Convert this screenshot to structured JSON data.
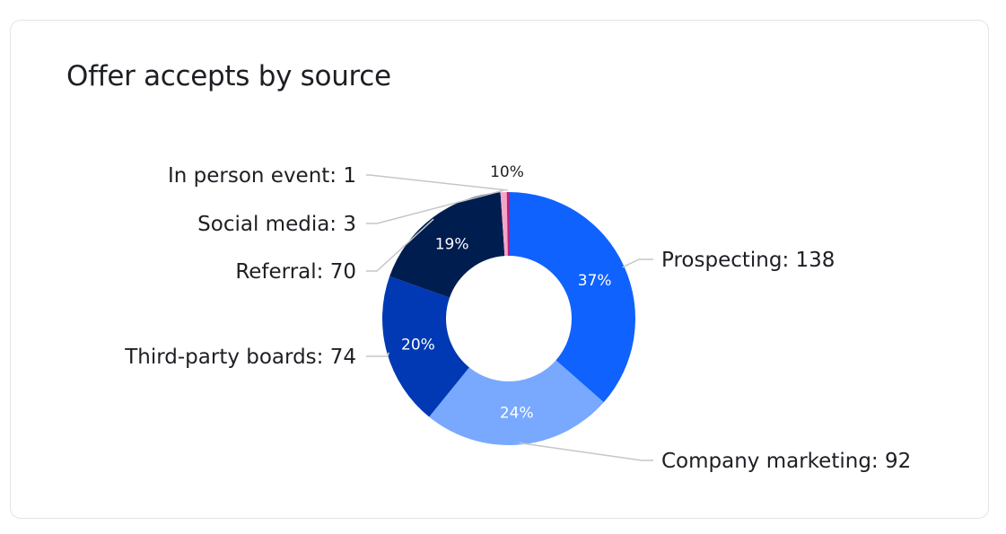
{
  "chart_data": {
    "type": "pie",
    "variant": "donut",
    "title": "Offer accepts by source",
    "slices": [
      {
        "label": "Prospecting",
        "value": 138,
        "percent_label": "37%",
        "color": "#0f62fe"
      },
      {
        "label": "Company marketing",
        "value": 92,
        "percent_label": "24%",
        "color": "#78a9ff"
      },
      {
        "label": "Third-party boards",
        "value": 74,
        "percent_label": "20%",
        "color": "#0039b3"
      },
      {
        "label": "Referral",
        "value": 70,
        "percent_label": "19%",
        "color": "#001d4f"
      },
      {
        "label": "Social media",
        "value": 3,
        "percent_label": "",
        "color": "#f5a6c8"
      },
      {
        "label": "In person event",
        "value": 1,
        "percent_label": "",
        "color": "#d3166a"
      }
    ],
    "overlapping_small_label": "10%",
    "legend": "none"
  }
}
